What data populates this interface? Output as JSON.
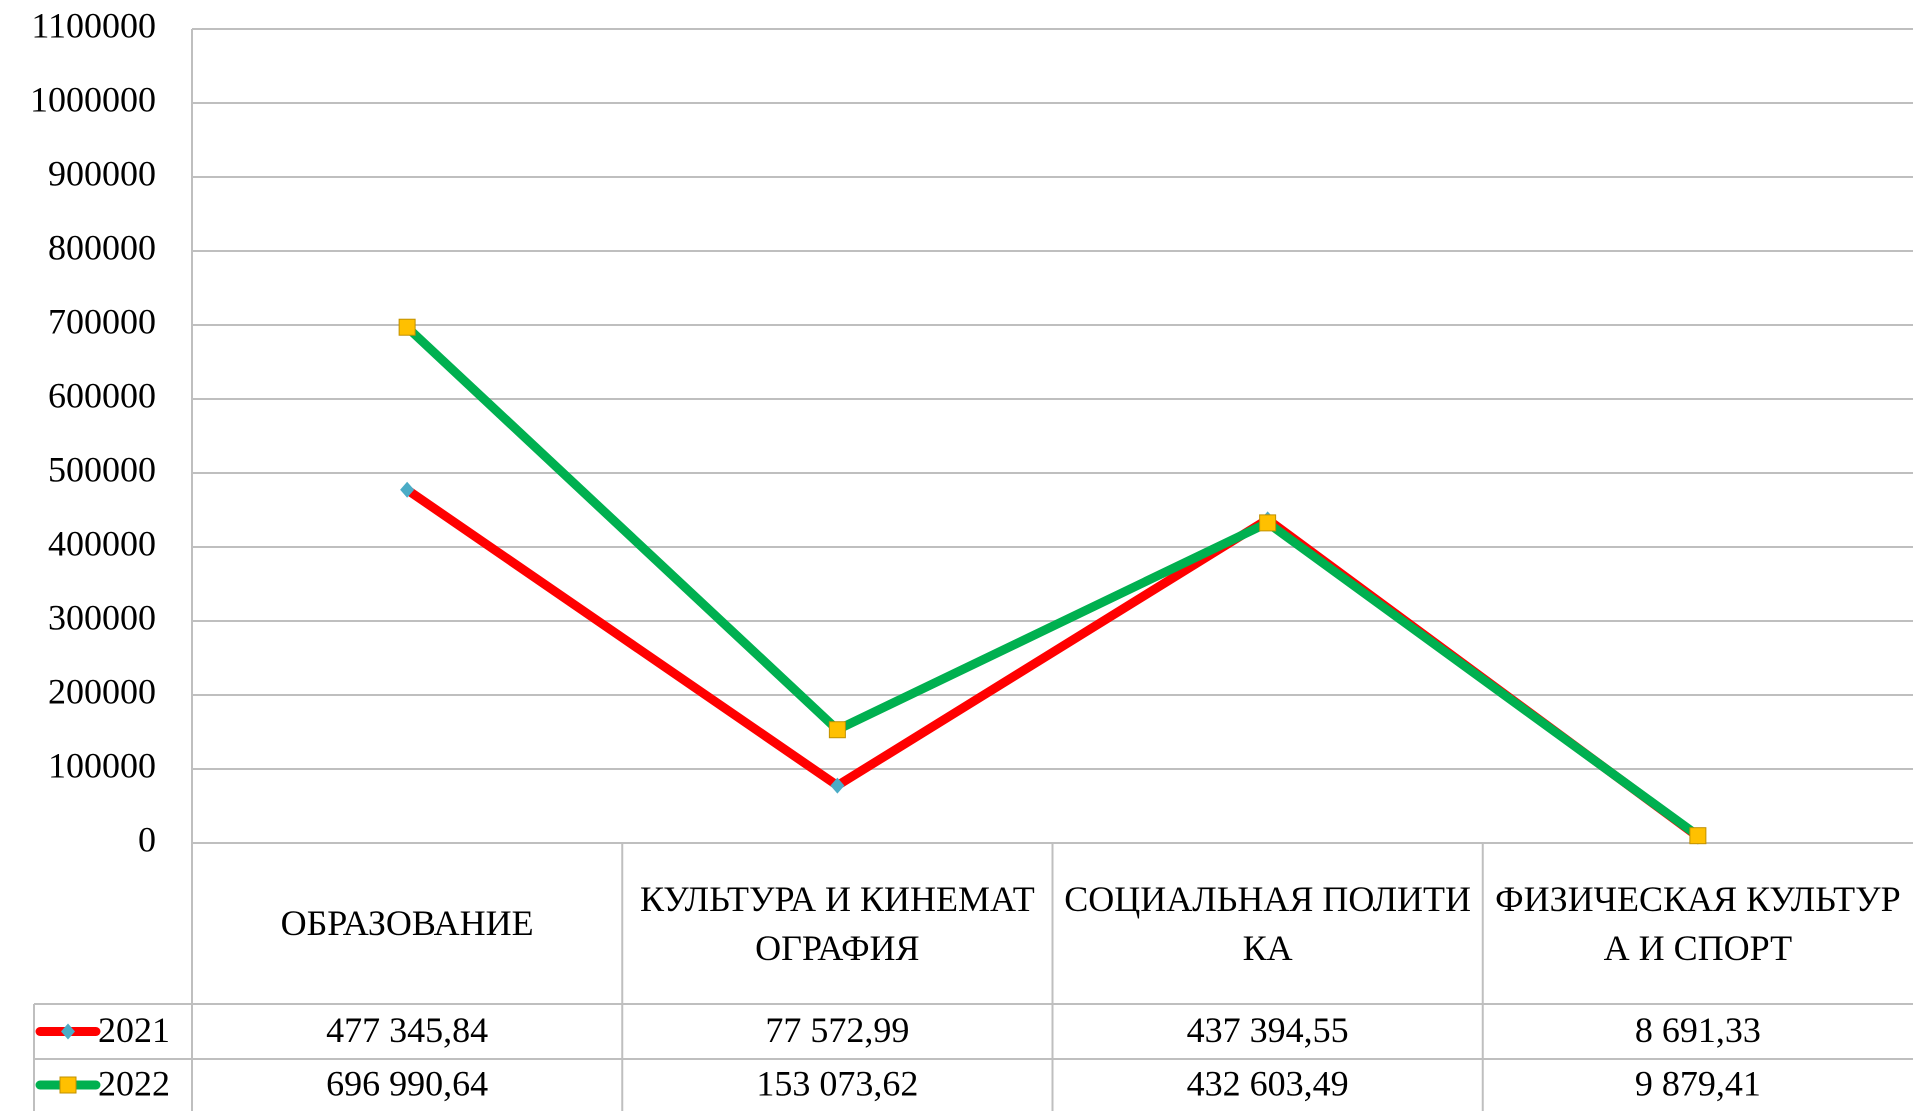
{
  "chart_data": {
    "type": "line",
    "categories": [
      "ОБРАЗОВАНИЕ",
      "КУЛЬТУРА И КИНЕМАТОГРАФИЯ",
      "СОЦИАЛЬНАЯ ПОЛИТИКА",
      "ФИЗИЧЕСКАЯ КУЛЬТУРА И СПОРТ"
    ],
    "series": [
      {
        "name": "2021",
        "color": "#ff0000",
        "marker": "diamond",
        "marker_color": "#4bacc6",
        "values": [
          477345.84,
          77572.99,
          437394.55,
          8691.33
        ],
        "value_labels": [
          "477 345,84",
          "77 572,99",
          "437 394,55",
          "8 691,33"
        ]
      },
      {
        "name": "2022",
        "color": "#00b050",
        "marker": "square",
        "marker_color": "#ffc000",
        "values": [
          696990.64,
          153073.62,
          432603.49,
          9879.41
        ],
        "value_labels": [
          "696 990,64",
          "153 073,62",
          "432 603,49",
          "9 879,41"
        ]
      }
    ],
    "ylim": [
      0,
      1100000
    ],
    "yticks": [
      0,
      100000,
      200000,
      300000,
      400000,
      500000,
      600000,
      700000,
      800000,
      900000,
      1000000,
      1100000
    ],
    "grid": true
  }
}
